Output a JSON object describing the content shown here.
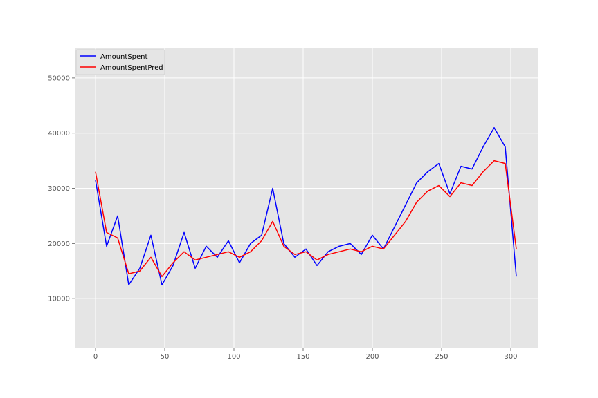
{
  "chart_data": {
    "type": "line",
    "title": "",
    "xlabel": "",
    "ylabel": "",
    "xlim": [
      -15,
      320
    ],
    "ylim": [
      1000,
      55500
    ],
    "x_ticks": [
      0,
      50,
      100,
      150,
      200,
      250,
      300
    ],
    "y_ticks": [
      10000,
      20000,
      30000,
      40000,
      50000
    ],
    "x_tick_labels": [
      "0",
      "50",
      "100",
      "150",
      "200",
      "250",
      "300"
    ],
    "y_tick_labels": [
      "10000",
      "20000",
      "30000",
      "40000",
      "50000"
    ],
    "grid": true,
    "legend_position": "top-left",
    "x": [
      0,
      8,
      16,
      24,
      32,
      40,
      48,
      56,
      64,
      72,
      80,
      88,
      96,
      104,
      112,
      120,
      128,
      136,
      144,
      152,
      160,
      168,
      176,
      184,
      192,
      200,
      208,
      216,
      224,
      232,
      240,
      248,
      256,
      264,
      272,
      280,
      288,
      296,
      304
    ],
    "series": [
      {
        "name": "AmountSpent",
        "color": "#0000ff",
        "values": [
          31500,
          19500,
          25000,
          12500,
          15500,
          21500,
          12500,
          16000,
          22000,
          15500,
          19500,
          17500,
          20500,
          16500,
          20000,
          21500,
          30000,
          20000,
          17500,
          19000,
          16000,
          18500,
          19500,
          20000,
          18000,
          21500,
          19000,
          23000,
          27000,
          31000,
          33000,
          34500,
          29000,
          34000,
          33500,
          37500,
          41000,
          37500,
          14000
        ]
      },
      {
        "name": "AmountSpentPred",
        "color": "#ff0000",
        "values": [
          33000,
          22000,
          21000,
          14500,
          15000,
          17500,
          14000,
          16500,
          18500,
          17000,
          17500,
          18000,
          18500,
          17500,
          18500,
          20500,
          24000,
          19500,
          18000,
          18500,
          17000,
          18000,
          18500,
          19000,
          18500,
          19500,
          19000,
          21500,
          24000,
          27500,
          29500,
          30500,
          28500,
          31000,
          30500,
          33000,
          35000,
          34500,
          19000
        ]
      }
    ]
  },
  "legend": {
    "items": [
      {
        "label": "AmountSpent",
        "color": "#0000ff"
      },
      {
        "label": "AmountSpentPred",
        "color": "#ff0000"
      }
    ]
  },
  "colors": {
    "plot_background": "#e5e5e5",
    "grid": "#ffffff",
    "figure_background": "#ffffff"
  }
}
